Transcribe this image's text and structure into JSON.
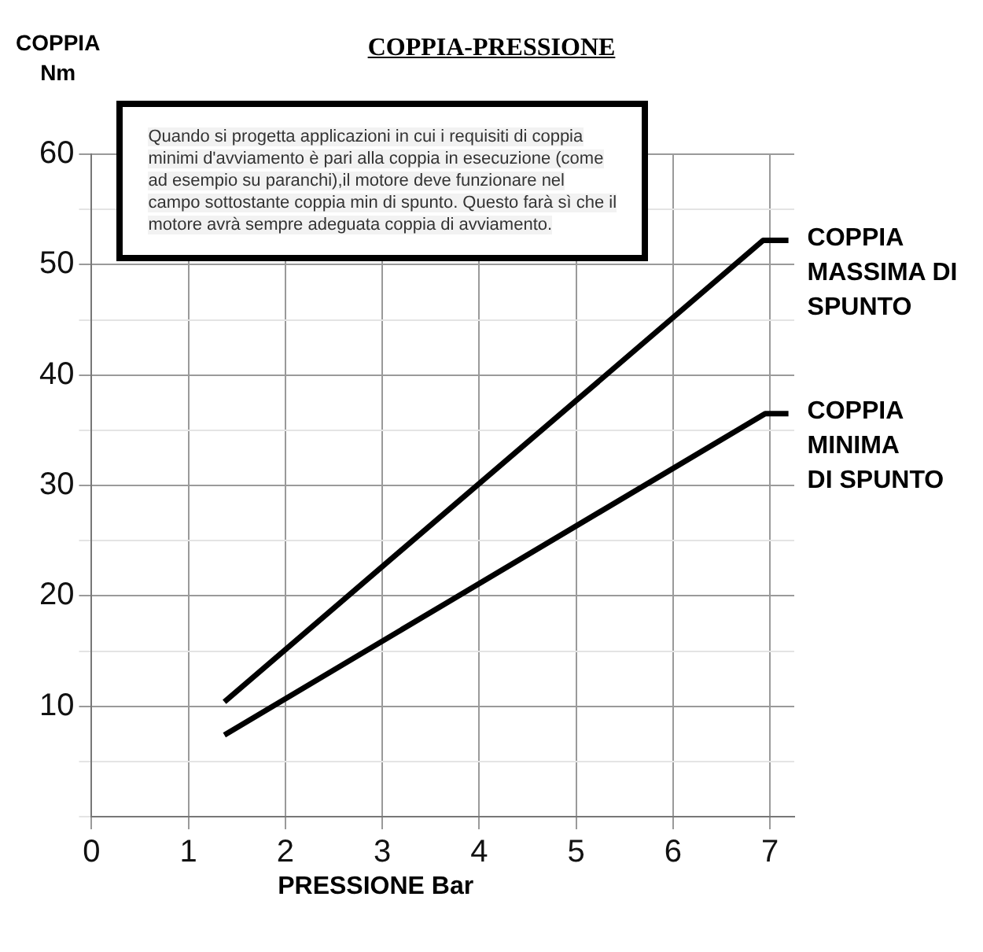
{
  "chart_data": {
    "type": "line",
    "title": "COPPIA-PRESSIONE",
    "xlabel": "PRESSIONE Bar",
    "ylabel": "COPPIA\nNm",
    "annotations": [
      "Quando si progetta applicazioni in cui i requisiti di coppia minimi d'avviamento è pari alla coppia in esecuzione (come ad esempio su paranchi),il motore deve funzionare nel campo sottostante coppia min di spunto. Questo farà sì che il motore avrà sempre adeguata coppia di avviamento."
    ],
    "series": [
      {
        "name": "COPPIA\nMASSIMA DI\nSPUNTO",
        "color": "#000000",
        "x": [
          1.37,
          6.93,
          7.19
        ],
        "values": [
          10.4,
          52.2,
          52.2
        ]
      },
      {
        "name": "COPPIA\nMINIMA\nDI SPUNTO",
        "color": "#000000",
        "x": [
          1.37,
          6.95,
          7.19
        ],
        "values": [
          7.4,
          36.5,
          36.5
        ]
      }
    ],
    "xlim": [
      0,
      7.25
    ],
    "xticks": [
      0,
      1,
      2,
      3,
      4,
      5,
      6,
      7
    ],
    "ylim": [
      0,
      60
    ],
    "yticks": [
      {
        "value": 0,
        "label": null
      },
      {
        "value": 5,
        "label": null
      },
      10,
      {
        "value": 15,
        "label": null
      },
      20,
      {
        "value": 25,
        "label": null
      },
      30,
      {
        "value": 35,
        "label": null
      },
      40,
      {
        "value": 45,
        "label": null
      },
      50,
      {
        "value": 55,
        "label": null
      },
      60
    ],
    "grid": true,
    "legend": false
  }
}
